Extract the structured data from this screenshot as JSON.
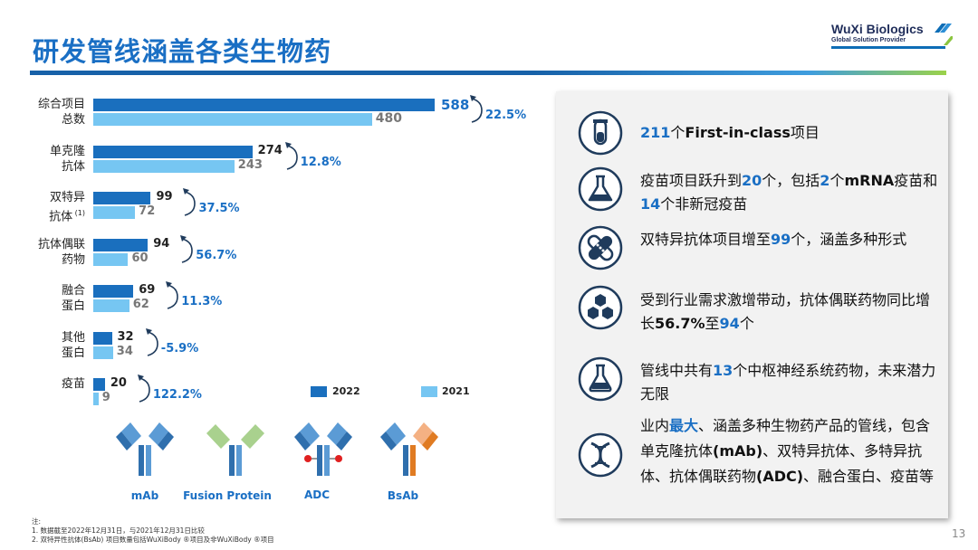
{
  "header": {
    "title": "研发管线涵盖各类生物药",
    "logo_name": "WuXi Biologics",
    "logo_tagline": "Global Solution Provider"
  },
  "chart_data": {
    "type": "bar",
    "categories": [
      {
        "line1": "综合项目",
        "line2": "总数",
        "sup": ""
      },
      {
        "line1": "单克隆",
        "line2": "抗体",
        "sup": ""
      },
      {
        "line1": "双特异",
        "line2": "抗体",
        "sup": "(1)"
      },
      {
        "line1": "抗体偶联",
        "line2": "药物",
        "sup": ""
      },
      {
        "line1": "融合",
        "line2": "蛋白",
        "sup": ""
      },
      {
        "line1": "其他",
        "line2": "蛋白",
        "sup": ""
      },
      {
        "line1": "疫苗",
        "line2": "",
        "sup": ""
      }
    ],
    "series": [
      {
        "name": "2022",
        "color": "#1a6fbe",
        "values": [
          588,
          274,
          99,
          94,
          69,
          32,
          20
        ]
      },
      {
        "name": "2021",
        "color": "#76c6f2",
        "values": [
          480,
          243,
          72,
          60,
          62,
          34,
          9
        ]
      }
    ],
    "growth": [
      "22.5%",
      "12.8%",
      "37.5%",
      "56.7%",
      "11.3%",
      "-5.9%",
      "122.2%"
    ],
    "xlim": [
      0,
      588
    ]
  },
  "antibodies": [
    "mAb",
    "Fusion Protein",
    "ADC",
    "BsAb"
  ],
  "notes": {
    "heading": "注:",
    "line1": "1. 数据截至2022年12月31日，与2021年12月31日比较",
    "line2": "2. 双特异性抗体(BsAb) 项目数量包括WuXiBody ®项目及非WuXiBody ®项目"
  },
  "page_number": "13",
  "panel": {
    "items": [
      {
        "icon": "test-tube-icon",
        "parts": [
          [
            "211",
            "hl"
          ],
          [
            "个",
            ""
          ],
          [
            "First-in-class",
            "b"
          ],
          [
            "项目",
            ""
          ]
        ]
      },
      {
        "icon": "flask-icon",
        "parts": [
          [
            "疫苗项目跃升到",
            ""
          ],
          [
            "20",
            "hl"
          ],
          [
            "个，包括",
            ""
          ],
          [
            "2",
            "hl"
          ],
          [
            "个",
            ""
          ],
          [
            "mRNA",
            "b"
          ],
          [
            "疫苗和",
            ""
          ],
          [
            "14",
            "hl"
          ],
          [
            "个非新冠疫苗",
            ""
          ]
        ]
      },
      {
        "icon": "bispecific-icon",
        "parts": [
          [
            "双特异抗体项目增至",
            ""
          ],
          [
            "99",
            "hl"
          ],
          [
            "个，涵盖多种形式",
            ""
          ]
        ]
      },
      {
        "icon": "molecule-icon",
        "parts": [
          [
            "受到行业需求激增带动，抗体偶联药物同比增长",
            ""
          ],
          [
            "56.7%",
            "b"
          ],
          [
            "至",
            ""
          ],
          [
            "94",
            "hl"
          ],
          [
            "个",
            ""
          ]
        ]
      },
      {
        "icon": "flask-round-icon",
        "parts": [
          [
            "管线中共有",
            ""
          ],
          [
            "13",
            "hl"
          ],
          [
            "个中枢神经系统药物，未来潜力无限",
            ""
          ]
        ]
      },
      {
        "icon": "dna-icon",
        "parts": [
          [
            "业内",
            ""
          ],
          [
            "最大",
            "hl"
          ],
          [
            "、涵盖多种生物药产品的管线，包含单克隆抗体",
            ""
          ],
          [
            "(mAb)",
            "b"
          ],
          [
            "、双特异抗体、多特异抗体、抗体偶联药物",
            ""
          ],
          [
            "(ADC)",
            "b"
          ],
          [
            "、融合蛋白、疫苗等",
            ""
          ]
        ]
      }
    ]
  }
}
